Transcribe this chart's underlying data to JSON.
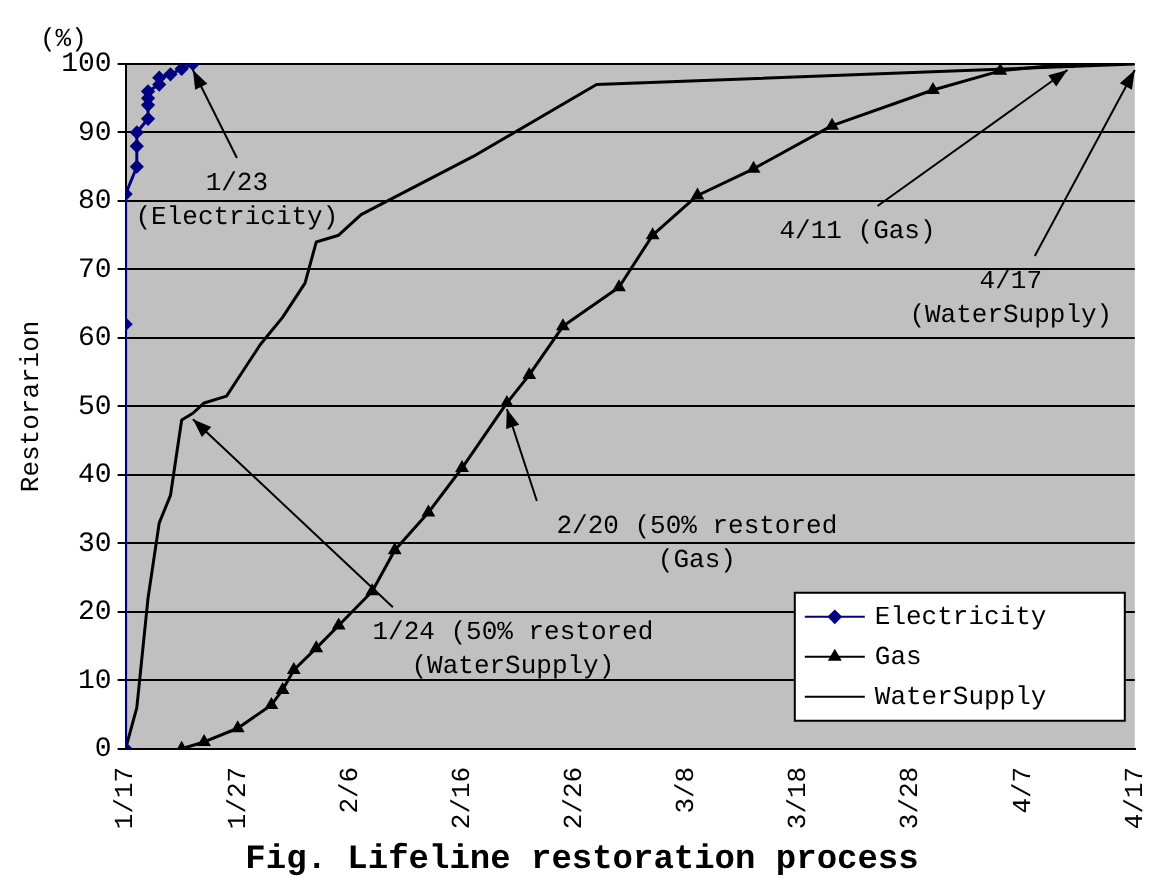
{
  "chart_data": {
    "type": "line",
    "title": "Fig. Lifeline restoration process",
    "ylabel": "Restorarion",
    "xlim": [
      "--01-17",
      "--04-17"
    ],
    "xticks": [
      {
        "value": "--01-17",
        "label": "1/17"
      },
      {
        "value": "--01-27",
        "label": "1/27"
      },
      {
        "value": "--02-06",
        "label": "2/6"
      },
      {
        "value": "--02-16",
        "label": "2/16"
      },
      {
        "value": "--02-26",
        "label": "2/26"
      },
      {
        "value": "--03-08",
        "label": "3/8"
      },
      {
        "value": "--03-18",
        "label": "3/18"
      },
      {
        "value": "--03-28",
        "label": "3/28"
      },
      {
        "value": "--04-07",
        "label": "4/7"
      },
      {
        "value": "--04-17",
        "label": "4/17"
      }
    ],
    "ylim": [
      0,
      100
    ],
    "yticks": [
      0,
      10,
      20,
      30,
      40,
      50,
      60,
      70,
      80,
      90,
      100
    ],
    "grid": "y",
    "legend": "bottom right",
    "series": [
      {
        "name": "Electricity",
        "color": "#000080",
        "marker": "diamond",
        "x": [
          "--01-17",
          "--01-17",
          "--01-17",
          "--01-18",
          "--01-18",
          "--01-18",
          "--01-19",
          "--01-19",
          "--01-19",
          "--01-19",
          "--01-20",
          "--01-20",
          "--01-21",
          "--01-22",
          "--01-23"
        ],
        "values": [
          0,
          62,
          81,
          85,
          88,
          90,
          92,
          94,
          95,
          96,
          97,
          98,
          98.5,
          99.3,
          100
        ]
      },
      {
        "name": "Gas",
        "color": "#000000",
        "marker": "triangle",
        "x": [
          "--01-22",
          "--01-24",
          "--01-27",
          "--01-30",
          "--01-31",
          "--02-01",
          "--02-03",
          "--02-05",
          "--02-08",
          "--02-10",
          "--02-13",
          "--02-16",
          "--02-20",
          "--02-22",
          "--02-25",
          "--03-02",
          "--03-05",
          "--03-09",
          "--03-14",
          "--03-21",
          "--03-30",
          "--04-05",
          "--04-11"
        ],
        "values": [
          0,
          1,
          3,
          6.4,
          8.6,
          11.5,
          14.7,
          18,
          23,
          29,
          34.5,
          41,
          50.5,
          54.6,
          61.7,
          67.4,
          75,
          80.8,
          84.7,
          91,
          96.2,
          99,
          100
        ]
      },
      {
        "name": "WaterSupply",
        "color": "#000000",
        "marker": "none",
        "x": [
          "--01-17",
          "--01-18",
          "--01-19",
          "--01-20",
          "--01-21",
          "--01-22",
          "--01-23",
          "--01-24",
          "--01-26",
          "--01-27",
          "--01-29",
          "--01-30",
          "--01-31",
          "--02-02",
          "--02-03",
          "--02-05",
          "--02-07",
          "--02-17",
          "--02-28",
          "--04-17"
        ],
        "values": [
          0,
          6,
          22,
          33,
          37,
          48,
          49,
          50.5,
          51.5,
          54,
          59,
          61,
          63,
          68,
          74,
          75,
          78,
          86.5,
          97,
          100
        ]
      }
    ],
    "annotations": [
      "(%)",
      {
        "text": "1/23\n(Electricity)",
        "x": "--01-23",
        "y": 100
      },
      {
        "text": "1/24 (50% restored\n(WaterSupply)",
        "x": "--01-23",
        "y": 49
      },
      {
        "text": "2/20 (50% restored\n(Gas)",
        "x": "--02-20",
        "y": 50.5
      },
      {
        "text": "4/11 (Gas)",
        "x": "--04-11",
        "y": 100
      },
      {
        "text": "4/17\n(WaterSupply)",
        "x": "--04-17",
        "y": 100
      }
    ]
  }
}
